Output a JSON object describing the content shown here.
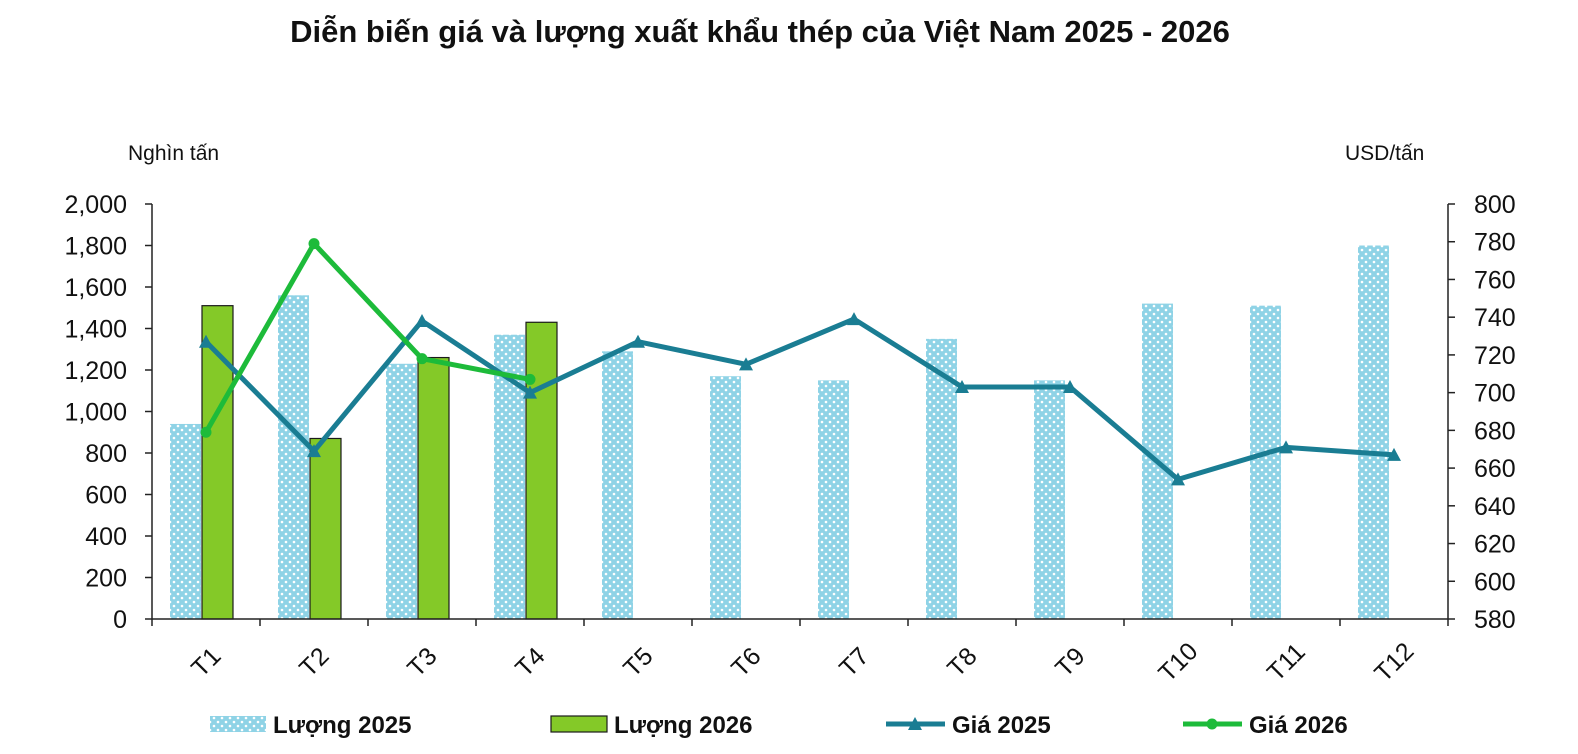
{
  "chart_data": {
    "type": "bar",
    "title": "Diễn biến giá và lượng xuất khẩu thép của Việt Nam 2025 - 2026",
    "ylabel_left": "Nghìn tấn",
    "ylabel_right": "USD/tấn",
    "categories": [
      "T1",
      "T2",
      "T3",
      "T4",
      "T5",
      "T6",
      "T7",
      "T8",
      "T9",
      "T10",
      "T11",
      "T12"
    ],
    "y_left": {
      "min": 0,
      "max": 2000,
      "step": 200,
      "ticks": [
        "0",
        "200",
        "400",
        "600",
        "800",
        "1,000",
        "1,200",
        "1,400",
        "1,600",
        "1,800",
        "2,000"
      ]
    },
    "y_right": {
      "min": 580,
      "max": 800,
      "step": 20,
      "ticks": [
        "580",
        "600",
        "620",
        "640",
        "660",
        "680",
        "700",
        "720",
        "740",
        "760",
        "780",
        "800"
      ]
    },
    "series": [
      {
        "name": "Lượng 2025",
        "type": "bar",
        "axis": "left",
        "color": "#8fd3e6",
        "values": [
          940,
          1560,
          1230,
          1370,
          1290,
          1170,
          1150,
          1350,
          1150,
          1520,
          1510,
          1800
        ]
      },
      {
        "name": "Lượng 2026",
        "type": "bar",
        "axis": "left",
        "color": "#84c928",
        "values": [
          1510,
          870,
          1260,
          1430,
          null,
          null,
          null,
          null,
          null,
          null,
          null,
          null
        ]
      },
      {
        "name": "Giá 2025",
        "type": "line",
        "axis": "right",
        "color": "#1a7d93",
        "marker": "triangle",
        "values": [
          727,
          669,
          738,
          700,
          727,
          715,
          739,
          703,
          703,
          654,
          671,
          667
        ]
      },
      {
        "name": "Giá 2026",
        "type": "line",
        "axis": "right",
        "color": "#1dbb3a",
        "marker": "circle",
        "values": [
          679,
          779,
          718,
          707,
          null,
          null,
          null,
          null,
          null,
          null,
          null,
          null
        ]
      }
    ],
    "legend_position": "bottom",
    "grid": false
  }
}
